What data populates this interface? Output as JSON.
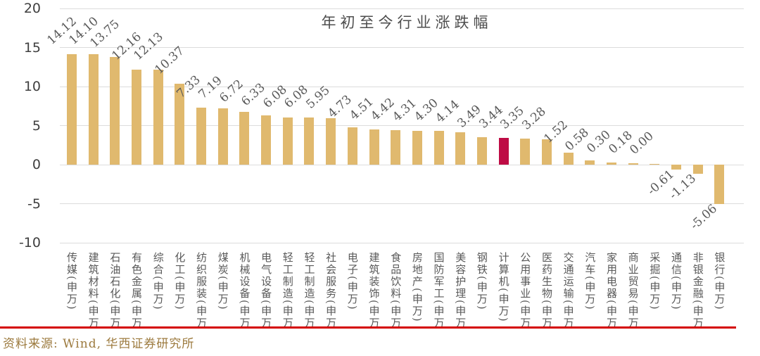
{
  "chart_data": {
    "type": "bar",
    "title": "年初至今行业涨跌幅",
    "categories": [
      "传媒(申万)",
      "建筑材料(申万)",
      "石油石化(申万)",
      "有色金属(申万)",
      "综合(申万)",
      "化工(申万)",
      "纺织服装(申万)",
      "煤炭(申万)",
      "机械设备(申万)",
      "电气设备(申万)",
      "轻工制造(申万)",
      "轻工制造(申万)",
      "社会服务(申万)",
      "电子(申万)",
      "建筑装饰(申万)",
      "食品饮料(申万)",
      "房地产(申万)",
      "国防军工(申万)",
      "美容护理(申万)",
      "钢铁(申万)",
      "计算机(申万)",
      "公用事业(申万)",
      "医药生物(申万)",
      "交通运输(申万)",
      "汽车(申万)",
      "家用电器(申万)",
      "商业贸易(申万)",
      "采掘(申万)",
      "通信(申万)",
      "非银金融(申万)",
      "银行(申万)"
    ],
    "values": [
      14.12,
      14.1,
      13.75,
      12.16,
      12.13,
      10.37,
      7.33,
      7.19,
      6.72,
      6.33,
      6.08,
      6.08,
      5.95,
      4.73,
      4.51,
      4.42,
      4.31,
      4.3,
      4.14,
      3.49,
      3.44,
      3.35,
      3.28,
      1.52,
      0.58,
      0.3,
      0.18,
      0.0,
      -0.61,
      -1.13,
      -5.06
    ],
    "highlight_index": 20,
    "highlight_category": "计算机(申万)",
    "bar_color": "#E0B96E",
    "highlight_color": "#BE0C45",
    "yticks": [
      20,
      15,
      10,
      5,
      0,
      -5,
      -10
    ],
    "ylim": [
      -10,
      20
    ],
    "grid": true,
    "legend": "none",
    "value_label_rotation_deg": -42,
    "xlabel": "",
    "ylabel": ""
  },
  "footer": {
    "source": "资料来源: Wind, 华西证券研究所",
    "source_color": "#9C7A3E",
    "separator_color": "#D40000"
  }
}
